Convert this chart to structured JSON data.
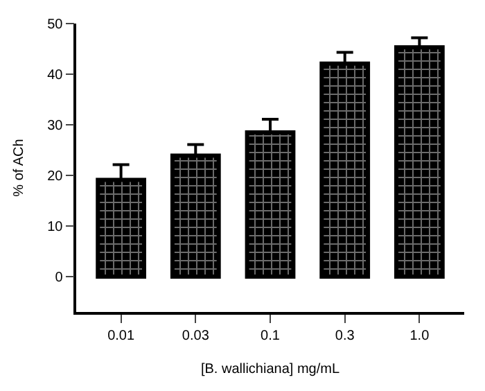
{
  "chart_data": {
    "type": "bar",
    "xlabel": "[B. wallichiana] mg/mL",
    "ylabel": "% of ACh",
    "categories": [
      "0.01",
      "0.03",
      "0.1",
      "0.3",
      "1.0"
    ],
    "values": [
      19.1,
      23.9,
      28.5,
      42.1,
      45.3
    ],
    "errors": [
      [
        19.1,
        22.1
      ],
      [
        23.9,
        26.1
      ],
      [
        28.5,
        31.1
      ],
      [
        42.1,
        44.3
      ],
      [
        45.3,
        47.2
      ]
    ],
    "color": "#000000",
    "ylim": [
      -7,
      50
    ],
    "yticks": [
      0,
      10,
      20,
      30,
      40,
      50
    ]
  }
}
